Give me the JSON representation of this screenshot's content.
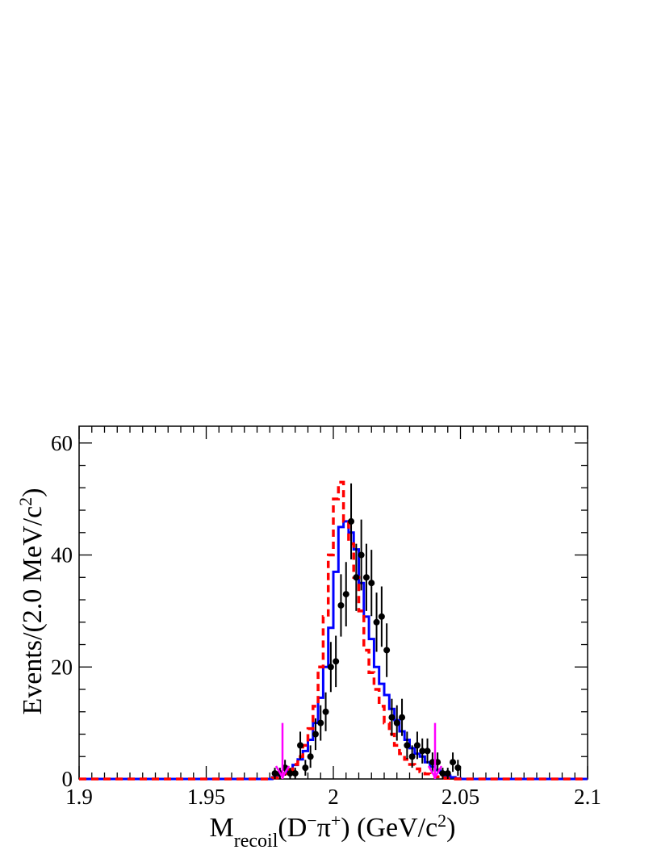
{
  "chart_data": {
    "type": "histogram",
    "xlabel": {
      "main": "M",
      "sub": "recoil",
      "mid": "(D",
      "sup1": "−",
      "pi": "π",
      "sup2": "+",
      "unit": ") (GeV/c",
      "sup3": "2",
      "end": ")"
    },
    "ylabel": {
      "main": "Events/(2.0 MeV/c",
      "sup": "2",
      "end": ")"
    },
    "xlim": [
      1.9,
      2.1
    ],
    "ylim": [
      0,
      63
    ],
    "x_ticks": [
      1.9,
      1.95,
      2.0,
      2.05,
      2.1
    ],
    "x_tick_labels": [
      "1.9",
      "1.95",
      "2",
      "2.05",
      "2.1"
    ],
    "y_ticks": [
      0,
      20,
      40,
      60
    ],
    "y_tick_labels": [
      "0",
      "20",
      "40",
      "60"
    ],
    "bin_width": 0.002,
    "data_points": {
      "color": "#000000",
      "x": [
        1.977,
        1.979,
        1.981,
        1.983,
        1.985,
        1.987,
        1.989,
        1.991,
        1.993,
        1.995,
        1.997,
        1.999,
        2.001,
        2.003,
        2.005,
        2.007,
        2.009,
        2.011,
        2.013,
        2.015,
        2.017,
        2.019,
        2.021,
        2.023,
        2.025,
        2.027,
        2.029,
        2.031,
        2.033,
        2.035,
        2.037,
        2.039,
        2.041,
        2.043,
        2.045,
        2.047,
        2.049
      ],
      "y": [
        1,
        1,
        2,
        1,
        1,
        6,
        2,
        4,
        8,
        10,
        12,
        20,
        21,
        31,
        33,
        46,
        36,
        40,
        36,
        35,
        28,
        29,
        23,
        11,
        10,
        11,
        6,
        4,
        6,
        5,
        5,
        3,
        3,
        1,
        1,
        3,
        2
      ]
    },
    "mc_blue": {
      "color": "#0000ff",
      "style": "solid",
      "y": [
        0.3,
        0.6,
        1.0,
        1.5,
        2.5,
        3.5,
        5.0,
        7.0,
        10.0,
        14.5,
        20.0,
        27.0,
        37.0,
        45.0,
        46.0,
        44.0,
        41.0,
        35.0,
        29.0,
        25.0,
        20.0,
        17.0,
        15.0,
        12.5,
        10.5,
        8.5,
        7.0,
        5.5,
        4.5,
        4.0,
        3.0,
        2.2,
        1.6,
        1.1,
        0.6,
        0.3,
        0.1
      ]
    },
    "mc_red": {
      "color": "#ff0000",
      "style": "dashed",
      "y": [
        0.2,
        0.5,
        0.9,
        1.6,
        2.6,
        4.0,
        6.0,
        9.0,
        13.0,
        20.0,
        29.0,
        40.0,
        50.0,
        53.0,
        46.0,
        42.0,
        36.0,
        30.0,
        23.0,
        19.0,
        16.0,
        13.0,
        10.0,
        8.0,
        6.0,
        4.5,
        3.5,
        2.6,
        1.8,
        1.3,
        0.9,
        0.6,
        0.4,
        0.2,
        0.1,
        0.05,
        0.0
      ]
    },
    "signal_window_arrows": {
      "color": "#ff00ff",
      "x": [
        1.98,
        2.04
      ],
      "top_y": 10
    }
  }
}
